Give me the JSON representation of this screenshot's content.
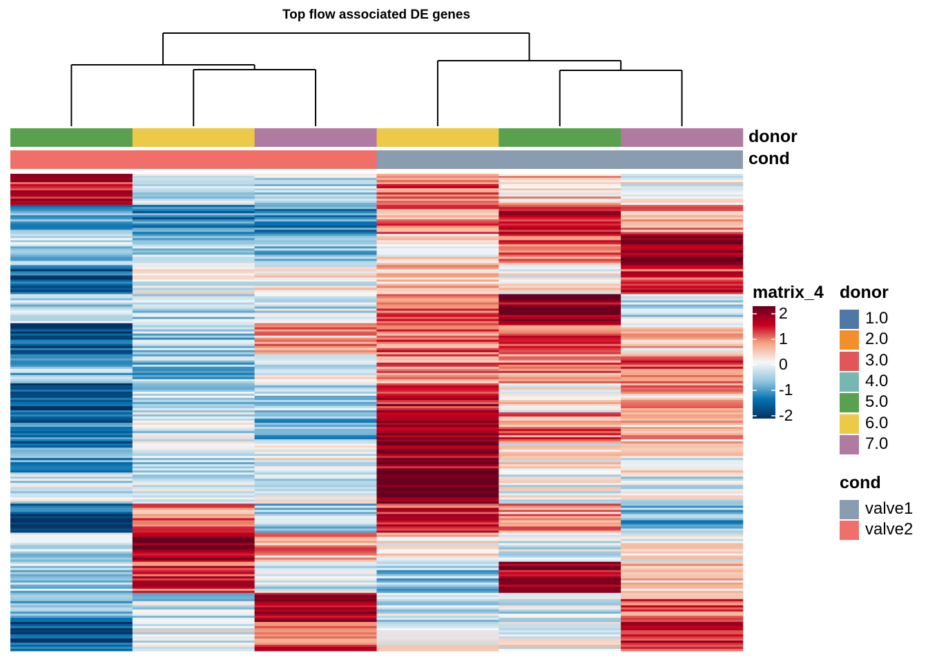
{
  "chart_data": {
    "type": "heatmap",
    "title": "Top flow associated DE genes",
    "value_legend_title": "matrix_4",
    "color_scale": {
      "min": -2,
      "mid": 0,
      "max": 2,
      "colors": [
        "#053061",
        "#0571b0",
        "#92c5de",
        "#f7f7f7",
        "#f4a582",
        "#ca0020",
        "#67001f"
      ],
      "ticks": [
        "2",
        "1",
        "0",
        "-1",
        "-2"
      ]
    },
    "columns": [
      {
        "donor": "5.0",
        "cond": "valve2"
      },
      {
        "donor": "6.0",
        "cond": "valve2"
      },
      {
        "donor": "7.0",
        "cond": "valve2"
      },
      {
        "donor": "6.0",
        "cond": "valve1"
      },
      {
        "donor": "5.0",
        "cond": "valve1"
      },
      {
        "donor": "7.0",
        "cond": "valve1"
      }
    ],
    "column_dendrogram": "((col1,(col2,col3)),(col4,(col5,col6)))",
    "annotation_rows": [
      "donor",
      "cond"
    ],
    "column_block_means": [
      [
        1.4,
        -0.9,
        -0.5,
        -1.5,
        -0.4,
        -1.6,
        -0.7,
        -1.7,
        -1.4,
        -1.0,
        -0.3,
        -1.6,
        -0.4,
        -0.5,
        -0.8,
        -1.5
      ],
      [
        -0.3,
        -1.2,
        -0.6,
        -0.1,
        -0.4,
        -0.6,
        -0.7,
        -0.5,
        -0.3,
        -0.4,
        -0.2,
        0.8,
        1.7,
        1.2,
        -0.4,
        -0.1
      ],
      [
        -0.4,
        -1.2,
        -0.7,
        0.0,
        -0.4,
        0.6,
        -0.1,
        -0.5,
        -0.8,
        -0.1,
        -0.2,
        -0.6,
        0.6,
        -0.3,
        1.6,
        1.0
      ],
      [
        0.9,
        0.8,
        0.3,
        0.4,
        0.9,
        0.9,
        0.7,
        1.3,
        1.8,
        1.6,
        2.0,
        1.2,
        0.2,
        -0.6,
        -0.3,
        0.0
      ],
      [
        0.4,
        1.3,
        0.8,
        0.1,
        1.7,
        1.0,
        0.8,
        0.2,
        0.8,
        0.1,
        -0.1,
        0.6,
        -0.2,
        1.6,
        -0.3,
        0.0
      ],
      [
        0.0,
        0.6,
        1.8,
        1.2,
        -0.3,
        0.3,
        0.9,
        0.6,
        0.4,
        0.0,
        -0.2,
        -0.8,
        0.1,
        0.4,
        0.9,
        1.4
      ]
    ],
    "legends": {
      "donor": {
        "title": "donor",
        "items": [
          {
            "label": "1.0",
            "color": "#4e79a7"
          },
          {
            "label": "2.0",
            "color": "#f28e2b"
          },
          {
            "label": "3.0",
            "color": "#e15759"
          },
          {
            "label": "4.0",
            "color": "#76b7b2"
          },
          {
            "label": "5.0",
            "color": "#59a14f"
          },
          {
            "label": "6.0",
            "color": "#edc948"
          },
          {
            "label": "7.0",
            "color": "#b07aa1"
          }
        ]
      },
      "cond": {
        "title": "cond",
        "items": [
          {
            "label": "valve1",
            "color": "#8a9db0"
          },
          {
            "label": "valve2",
            "color": "#f07069"
          }
        ]
      }
    }
  }
}
